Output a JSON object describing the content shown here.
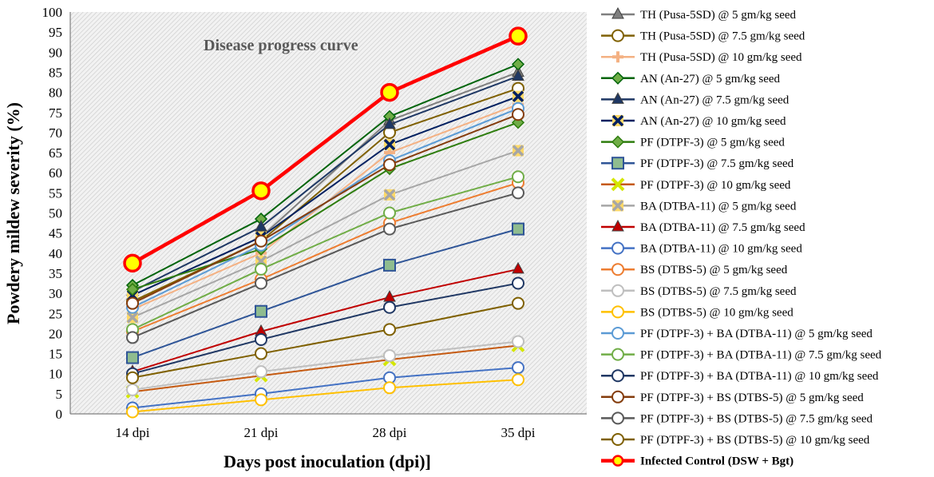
{
  "chart_data": {
    "type": "line",
    "title": "Disease progress curve",
    "xlabel": "Days post inoculation (dpi)]",
    "ylabel": "Powdery mildew severity (%)",
    "ylim": [
      0,
      100
    ],
    "ytick_step": 5,
    "grid": false,
    "legend_position": "right",
    "categories": [
      "14 dpi",
      "21 dpi",
      "28 dpi",
      "35 dpi"
    ],
    "series": [
      {
        "name": "TH (Pusa-5SD) @ 5 gm/kg seed",
        "color": "#7f7f7f",
        "marker": "triangle",
        "values": [
          29.5,
          44,
          73,
          85
        ]
      },
      {
        "name": "TH (Pusa-5SD) @ 7.5 gm/kg seed",
        "color": "#7f6000",
        "marker": "circle",
        "values": [
          28,
          43,
          70,
          81
        ]
      },
      {
        "name": "TH (Pusa-5SD) @ 10 gm/kg seed",
        "color": "#f4b183",
        "marker": "plus",
        "values": [
          26,
          40,
          65,
          77
        ]
      },
      {
        "name": "AN (An-27) @ 5 gm/kg seed",
        "color": "#00640a",
        "marker": "diamond",
        "values": [
          32,
          48.5,
          74,
          87
        ]
      },
      {
        "name": "AN (An-27) @ 7.5 gm/kg seed",
        "color": "#1f3864",
        "marker": "triangle",
        "values": [
          30.5,
          46.5,
          72,
          84
        ]
      },
      {
        "name": "AN (An-27) @ 10 gm/kg seed",
        "color": "#002060",
        "marker": "star",
        "values": [
          29.5,
          44,
          67,
          79
        ]
      },
      {
        "name": "PF (DTPF-3) @ 5 gm/kg seed",
        "color": "#2e7d0e",
        "marker": "diamond",
        "values": [
          31,
          41,
          61,
          72.5
        ]
      },
      {
        "name": "PF (DTPF-3) @ 7.5 gm/kg seed",
        "color": "#2f5597",
        "marker": "square",
        "values": [
          14,
          25.5,
          37,
          46
        ]
      },
      {
        "name": "PF (DTPF-3) @ 10 gm/kg seed",
        "color": "#c55a11",
        "marker": "x",
        "values": [
          5.5,
          9.5,
          13.5,
          17
        ]
      },
      {
        "name": "BA (DTBA-11) @ 5 gm/kg seed",
        "color": "#a6a6a6",
        "marker": "star",
        "values": [
          24,
          38,
          54.5,
          65.5
        ]
      },
      {
        "name": "BA (DTBA-11) @ 7.5 gm/kg seed",
        "color": "#c00000",
        "marker": "triangle",
        "values": [
          10.5,
          20.5,
          29,
          36
        ]
      },
      {
        "name": "BA (DTBA-11) @ 10 gm/kg seed",
        "color": "#4472c4",
        "marker": "circle",
        "values": [
          1.5,
          5,
          9,
          11.5
        ]
      },
      {
        "name": "BS (DTBS-5) @ 5 gm/kg seed",
        "color": "#ed7d31",
        "marker": "circle",
        "values": [
          20.5,
          33.5,
          47.5,
          57.5
        ]
      },
      {
        "name": "BS (DTBS-5) @ 7.5 gm/kg seed",
        "color": "#bfbfbf",
        "marker": "circle",
        "values": [
          6,
          10.5,
          14.5,
          18
        ]
      },
      {
        "name": "BS (DTBS-5) @ 10 gm/kg seed",
        "color": "#ffc000",
        "marker": "circle",
        "values": [
          0.5,
          3.5,
          6.5,
          8.5
        ]
      },
      {
        "name": "PF (DTPF-3) + BA (DTBA-11) @ 5 gm/kg seed",
        "color": "#5b9bd5",
        "marker": "circle",
        "values": [
          26.5,
          42,
          63,
          76
        ]
      },
      {
        "name": "PF (DTPF-3) + BA (DTBA-11) @ 7.5 gm/kg seed",
        "color": "#70ad47",
        "marker": "circle",
        "values": [
          21,
          36,
          50,
          59
        ]
      },
      {
        "name": "PF (DTPF-3) + BA (DTBA-11) @ 10 gm/kg seed",
        "color": "#203864",
        "marker": "circle",
        "values": [
          10,
          18.5,
          26.5,
          32.5
        ]
      },
      {
        "name": "PF (DTPF-3) + BS (DTBS-5) @ 5 gm/kg seed",
        "color": "#843c0c",
        "marker": "circle",
        "values": [
          27.5,
          43,
          62,
          74.5
        ]
      },
      {
        "name": "PF (DTPF-3) + BS (DTBS-5) @ 7.5 gm/kg seed",
        "color": "#595959",
        "marker": "circle",
        "values": [
          19,
          32.5,
          46,
          55
        ]
      },
      {
        "name": "PF (DTPF-3) + BS (DTBS-5) @ 10 gm/kg seed",
        "color": "#7f6000",
        "marker": "circle",
        "values": [
          9,
          15,
          21,
          27.5
        ]
      },
      {
        "name": "Infected Control (DSW + Bgt)",
        "color": "#ff0000",
        "marker": "circle-yellow",
        "bold": true,
        "values": [
          37.5,
          55.5,
          80,
          94
        ]
      }
    ]
  }
}
